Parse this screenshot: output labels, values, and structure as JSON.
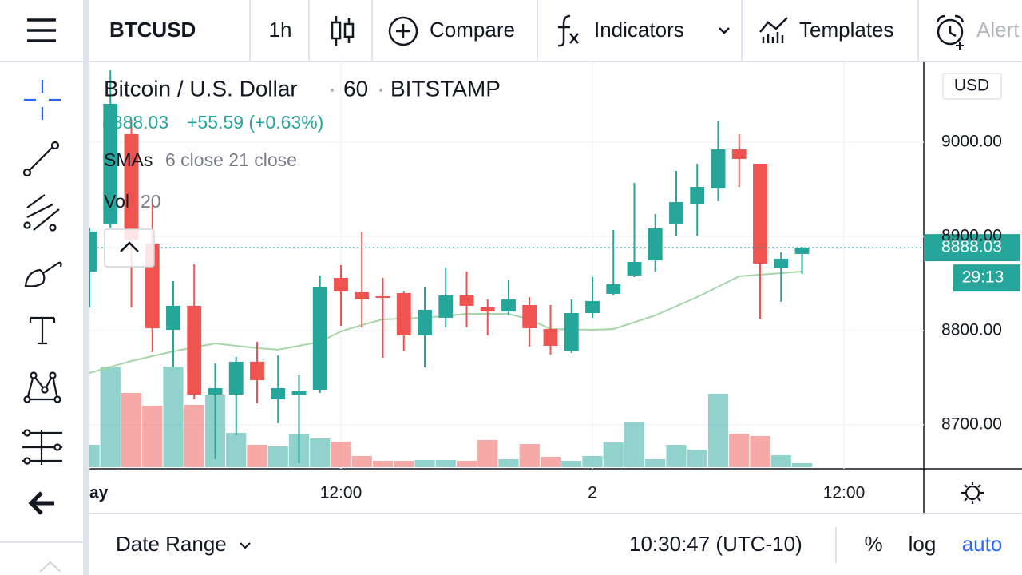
{
  "toolbar": {
    "symbol": "BTCUSD",
    "interval": "1h",
    "compare": "Compare",
    "indicators": "Indicators",
    "templates": "Templates",
    "alert": "Alert"
  },
  "legend": {
    "title": "Bitcoin / U.S. Dollar",
    "interval": "60",
    "exchange": "BITSTAMP",
    "change": "+55.59 (+0.63%)",
    "sma_label": "SMAs",
    "sma_params": "6 close 21 close",
    "vol_label": "Vol",
    "vol_params": "20"
  },
  "price_axis": {
    "currency": "USD",
    "countdown": "29:13"
  },
  "bottom_bar": {
    "date_range": "Date Range",
    "clock": "10:30:47 (UTC-10)",
    "percent": "%",
    "log": "log",
    "auto": "auto"
  },
  "chart_data": {
    "type": "candlestick",
    "x": [
      0,
      1,
      2,
      3,
      4,
      5,
      6,
      7,
      8,
      9,
      10,
      11,
      12,
      13,
      14,
      15,
      16,
      17,
      18,
      19,
      20,
      21,
      22,
      23,
      24,
      25,
      26,
      27,
      28,
      29,
      30,
      31,
      32,
      33,
      34
    ],
    "open": [
      8862.7,
      8913.6,
      9008.5,
      8892.4,
      8800.8,
      8826.3,
      8732.2,
      8732.2,
      8767.0,
      8727.1,
      8732.2,
      8737.3,
      8855.9,
      8840.7,
      8836.4,
      8839.8,
      8794.9,
      8813.6,
      8837.3,
      8824.6,
      8820.3,
      8827.1,
      8801.7,
      8778.0,
      8818.6,
      8839.0,
      8858.5,
      8874.6,
      8913.6,
      8933.9,
      8950.8,
      8992.4,
      8977.1,
      8866.1,
      8881.4
    ],
    "high": [
      8909.0,
      9076.0,
      9023.7,
      8934.7,
      8852.5,
      8870.3,
      8765.3,
      8772.0,
      8788.1,
      8773.7,
      8752.5,
      8858.5,
      8869.5,
      8905.1,
      8855.9,
      8841.5,
      8845.8,
      8866.9,
      8862.7,
      8833.1,
      8854.2,
      8835.6,
      8827.1,
      8833.1,
      8856.8,
      8906.8,
      8956.8,
      8923.7,
      8969.5,
      8977.1,
      9022.0,
      9008.5,
      8977.1,
      8883.1,
      8889.0
    ],
    "low": [
      8824.6,
      8909.0,
      8824.6,
      8777.1,
      8761.0,
      8727.1,
      8663.6,
      8689.0,
      8722.9,
      8701.7,
      8659.3,
      8733.9,
      8805.1,
      8803.4,
      8771.2,
      8778.0,
      8761.0,
      8803.4,
      8803.4,
      8794.9,
      8816.1,
      8783.1,
      8774.6,
      8776.3,
      8813.6,
      8837.3,
      8856.8,
      8862.7,
      8900.0,
      8900.8,
      8937.3,
      8952.5,
      8811.9,
      8830.5,
      8860.2
    ],
    "close": [
      8905.1,
      9040.7,
      8896.6,
      8802.5,
      8826.3,
      8732.2,
      8739.0,
      8767.0,
      8747.5,
      8739.0,
      8735.6,
      8845.8,
      8841.5,
      8833.1,
      8834.7,
      8794.9,
      8822.0,
      8837.3,
      8826.3,
      8820.3,
      8833.1,
      8802.5,
      8783.9,
      8818.6,
      8831.4,
      8849.2,
      8872.9,
      8908.5,
      8936.4,
      8952.5,
      8992.4,
      8982.2,
      8871.2,
      8876.3,
      8888.03
    ],
    "volume": [
      28,
      125,
      93,
      77,
      126,
      78,
      90,
      43,
      28,
      26,
      41,
      36,
      32,
      14,
      8,
      8,
      9,
      9,
      8,
      34,
      10,
      29,
      13,
      8,
      14,
      31,
      57,
      10,
      28,
      22,
      92,
      42,
      39,
      15,
      5
    ],
    "sma": [
      8755.1,
      8761.5,
      8767.8,
      8772.9,
      8778.0,
      8782.2,
      8786.4,
      8783.9,
      8781.4,
      8779.7,
      8783.9,
      8788.1,
      8799.2,
      8805.9,
      8811.9,
      8812.8,
      8813.6,
      8815.7,
      8817.8,
      8817.8,
      8817.8,
      8811.9,
      8801.7,
      8801.3,
      8800.8,
      8801.7,
      8808.9,
      8816.1,
      8825.9,
      8835.6,
      8846.6,
      8857.6,
      8859.3,
      8861.0,
      8862.7
    ],
    "up_color": "#26a69a",
    "down_color": "#ef5350",
    "sma_color": "#a5d6a7",
    "last_price": 8888.03,
    "xlim": [
      0,
      39.81
    ],
    "xticks": [
      {
        "value": 0,
        "label": "ay"
      },
      {
        "value": 12,
        "label": "12:00"
      },
      {
        "value": 24,
        "label": "2"
      },
      {
        "value": 36,
        "label": "12:00"
      }
    ],
    "ylim": [
      8653.4,
      9084.7
    ],
    "yticks": [
      {
        "value": 8700,
        "label": "8700.00"
      },
      {
        "value": 8800,
        "label": "8800.00"
      },
      {
        "value": 8900,
        "label": "8900.00"
      },
      {
        "value": 9000,
        "label": "9000.00"
      }
    ],
    "grid": true
  }
}
